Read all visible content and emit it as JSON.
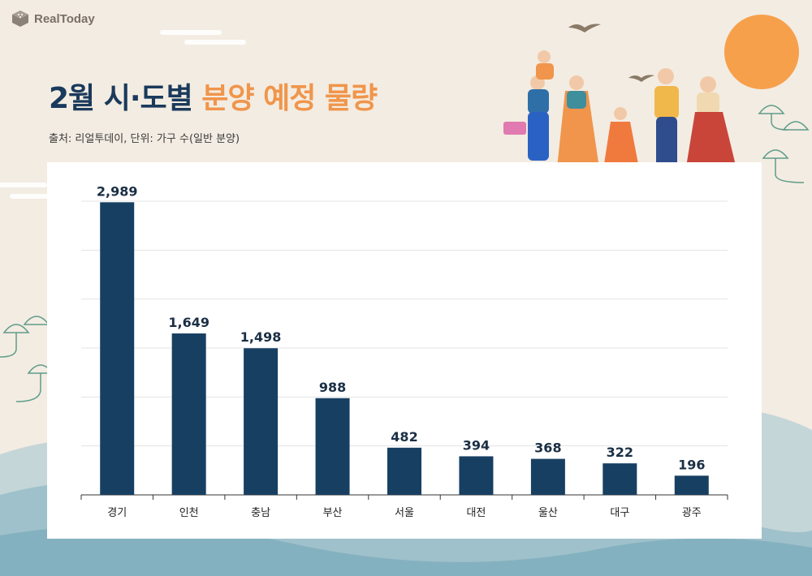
{
  "brand": {
    "logo_text": "RealToday"
  },
  "header": {
    "title_part1": "2월 시·도별",
    "title_part2": "분양 예정 물량",
    "source": "출처: 리얼투데이, 단위: 가구 수(일반 분양)"
  },
  "colors": {
    "bar": "#173f62",
    "title_dark": "#1a3a5c",
    "title_accent": "#f0954b",
    "sun": "#f6a04c"
  },
  "chart_data": {
    "type": "bar",
    "categories": [
      "경기",
      "인천",
      "충남",
      "부산",
      "서울",
      "대전",
      "울산",
      "대구",
      "광주"
    ],
    "values": [
      2989,
      1649,
      1498,
      988,
      482,
      394,
      368,
      322,
      196
    ],
    "value_labels": [
      "2,989",
      "1,649",
      "1,498",
      "988",
      "482",
      "394",
      "368",
      "322",
      "196"
    ],
    "ylim": [
      0,
      3000
    ],
    "grid": true,
    "gridlines": [
      500,
      1000,
      1500,
      2000,
      2500,
      3000
    ]
  }
}
